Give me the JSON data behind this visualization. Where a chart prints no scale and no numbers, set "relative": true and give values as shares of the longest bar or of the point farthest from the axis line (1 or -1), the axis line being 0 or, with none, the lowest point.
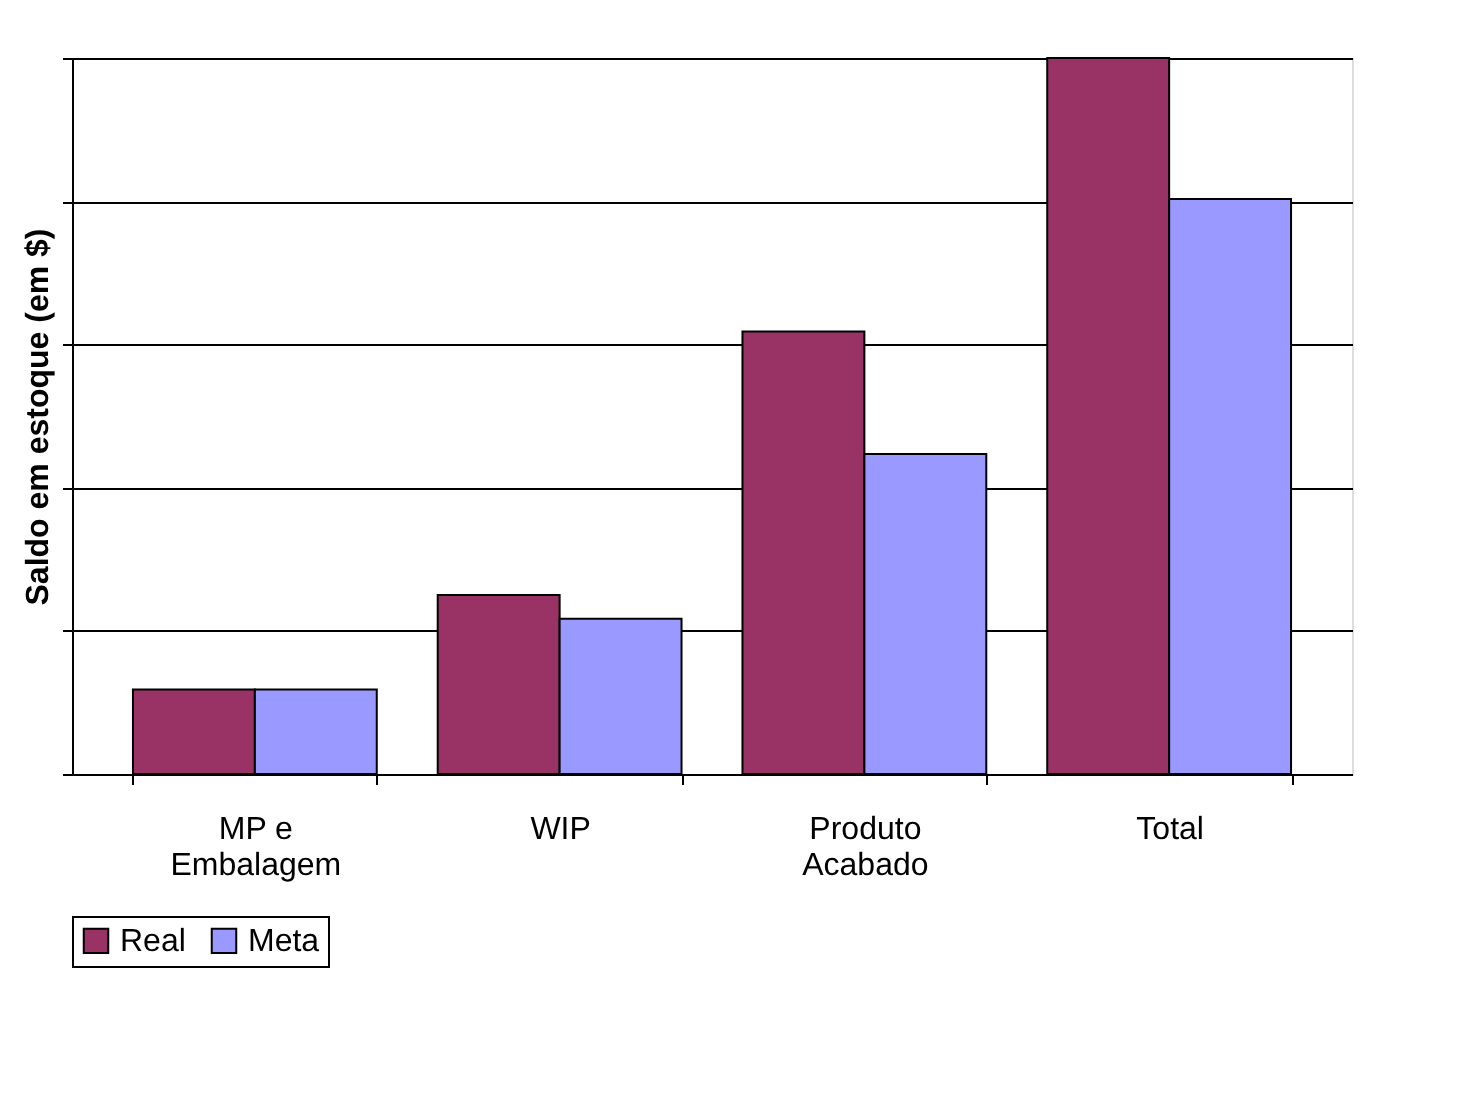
{
  "chart_data": {
    "type": "bar",
    "relative": true,
    "ylabel": "Saldo em estoque (em $)",
    "categories": [
      "MP e Embalagem",
      "WIP",
      "Produto Acabado",
      "Total"
    ],
    "series": [
      {
        "name": "Real",
        "color": "#993366",
        "values": [
          0.118,
          0.25,
          0.618,
          1
        ]
      },
      {
        "name": "Meta",
        "color": "#9999ff",
        "values": [
          0.118,
          0.217,
          0.447,
          0.803
        ]
      }
    ],
    "grid": "y",
    "legend": "bottom"
  }
}
